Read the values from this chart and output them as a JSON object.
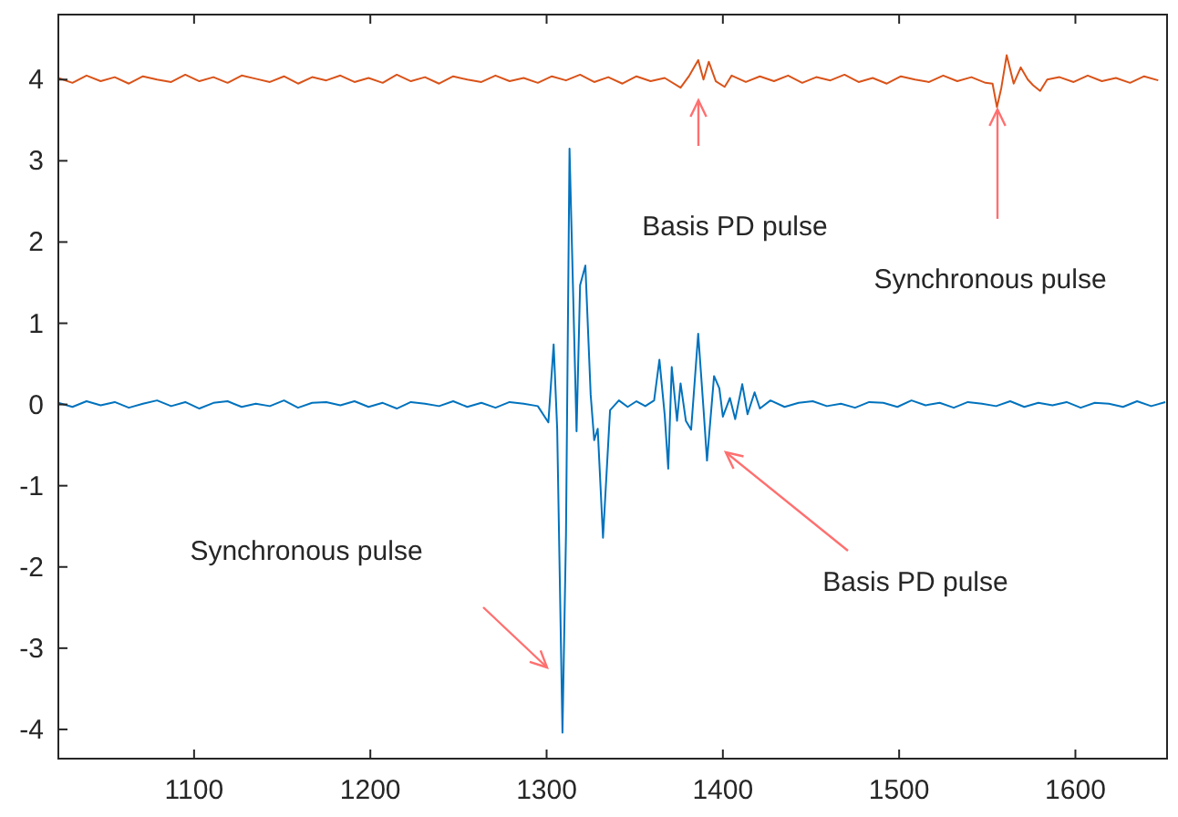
{
  "chart_data": {
    "type": "line",
    "xlim": [
      1023,
      1652
    ],
    "ylim": [
      -4.36,
      4.8
    ],
    "xticks": [
      1100,
      1200,
      1300,
      1400,
      1500,
      1600
    ],
    "yticks": [
      -4,
      -3,
      -2,
      -1,
      0,
      1,
      2,
      3,
      4
    ],
    "grid": false,
    "marker": "none",
    "line_style": "solid",
    "series": [
      {
        "color": "#d95319",
        "x": [
          1023,
          1031,
          1039,
          1047,
          1055,
          1063,
          1071,
          1079,
          1087,
          1095,
          1103,
          1111,
          1119,
          1127,
          1135,
          1143,
          1151,
          1159,
          1167,
          1175,
          1183,
          1191,
          1199,
          1207,
          1215,
          1223,
          1231,
          1239,
          1247,
          1255,
          1263,
          1271,
          1279,
          1287,
          1295,
          1303,
          1311,
          1319,
          1327,
          1335,
          1343,
          1351,
          1359,
          1367,
          1376,
          1381,
          1386,
          1389,
          1392,
          1396,
          1401,
          1405,
          1413,
          1421,
          1429,
          1437,
          1445,
          1453,
          1461,
          1469,
          1477,
          1485,
          1493,
          1501,
          1509,
          1517,
          1525,
          1533,
          1541,
          1549,
          1553,
          1555.5,
          1558,
          1561,
          1565,
          1569,
          1573,
          1576,
          1580,
          1584,
          1591,
          1599,
          1607,
          1615,
          1623,
          1631,
          1639,
          1647
        ],
        "values": [
          4.02,
          3.96,
          4.05,
          3.98,
          4.03,
          3.95,
          4.04,
          4.0,
          3.97,
          4.06,
          3.98,
          4.03,
          3.96,
          4.05,
          4.01,
          3.97,
          4.04,
          3.95,
          4.03,
          3.99,
          4.05,
          3.97,
          4.02,
          3.96,
          4.06,
          3.98,
          4.03,
          3.95,
          4.04,
          4.0,
          3.97,
          4.05,
          3.98,
          4.02,
          3.96,
          4.04,
          3.99,
          4.06,
          3.97,
          4.03,
          3.95,
          4.04,
          3.98,
          4.02,
          3.9,
          4.05,
          4.24,
          4.0,
          4.22,
          3.98,
          3.91,
          4.05,
          3.97,
          4.04,
          3.98,
          4.05,
          3.96,
          4.03,
          3.99,
          4.06,
          3.97,
          4.02,
          3.95,
          4.04,
          4.0,
          3.97,
          4.05,
          3.98,
          4.03,
          3.96,
          3.95,
          3.66,
          3.9,
          4.3,
          3.95,
          4.15,
          4.0,
          3.93,
          3.86,
          4.0,
          4.03,
          3.97,
          4.05,
          3.98,
          4.02,
          3.96,
          4.04,
          3.99
        ]
      },
      {
        "color": "#0072bd",
        "x": [
          1023,
          1031,
          1039,
          1047,
          1055,
          1063,
          1071,
          1079,
          1087,
          1095,
          1103,
          1111,
          1119,
          1127,
          1135,
          1143,
          1151,
          1159,
          1167,
          1175,
          1183,
          1191,
          1199,
          1207,
          1215,
          1223,
          1231,
          1239,
          1247,
          1255,
          1263,
          1271,
          1279,
          1287,
          1295,
          1301,
          1304,
          1306,
          1309,
          1311,
          1313,
          1317,
          1319,
          1322,
          1325,
          1327,
          1329,
          1332,
          1336,
          1341,
          1346,
          1351,
          1356,
          1361,
          1364,
          1367,
          1369,
          1371,
          1374,
          1376,
          1379,
          1382,
          1386,
          1389,
          1391,
          1395,
          1398,
          1400,
          1404,
          1407,
          1411,
          1414,
          1418,
          1421,
          1427,
          1435,
          1443,
          1451,
          1459,
          1467,
          1475,
          1483,
          1491,
          1499,
          1507,
          1515,
          1523,
          1531,
          1539,
          1547,
          1555,
          1563,
          1571,
          1579,
          1587,
          1595,
          1603,
          1611,
          1619,
          1627,
          1635,
          1643,
          1651
        ],
        "values": [
          0.02,
          -0.03,
          0.04,
          -0.01,
          0.03,
          -0.04,
          0.01,
          0.05,
          -0.02,
          0.03,
          -0.05,
          0.02,
          0.04,
          -0.03,
          0.01,
          -0.02,
          0.05,
          -0.04,
          0.02,
          0.03,
          -0.01,
          0.04,
          -0.03,
          0.02,
          -0.05,
          0.03,
          0.01,
          -0.02,
          0.04,
          -0.03,
          0.02,
          -0.04,
          0.03,
          0.01,
          -0.02,
          -0.22,
          0.74,
          -0.3,
          -4.04,
          -1.6,
          3.15,
          -0.33,
          1.47,
          1.71,
          0.12,
          -0.44,
          -0.3,
          -1.64,
          -0.07,
          0.05,
          -0.03,
          0.04,
          -0.02,
          0.05,
          0.55,
          -0.13,
          -0.79,
          0.46,
          -0.2,
          0.26,
          -0.2,
          -0.31,
          0.87,
          -0.05,
          -0.69,
          0.35,
          0.2,
          -0.15,
          0.08,
          -0.18,
          0.25,
          -0.12,
          0.15,
          -0.05,
          0.05,
          -0.03,
          0.02,
          0.04,
          -0.02,
          0.01,
          -0.04,
          0.03,
          0.02,
          -0.03,
          0.05,
          -0.01,
          0.02,
          -0.04,
          0.03,
          0.01,
          -0.02,
          0.04,
          -0.03,
          0.02,
          -0.01,
          0.03,
          -0.04,
          0.02,
          0.01,
          -0.03,
          0.04,
          -0.02,
          0.03
        ]
      }
    ],
    "annotations": [
      "Basis PD pulse",
      "Synchronous pulse",
      "Basis PD pulse",
      "Synchronous pulse"
    ]
  }
}
